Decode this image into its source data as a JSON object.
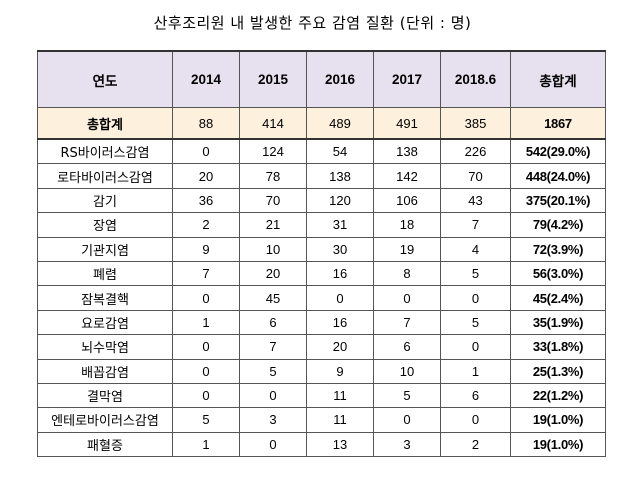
{
  "title": "산후조리원 내 발생한 주요 감염 질환 (단위 : 명)",
  "headers": [
    "연도",
    "2014",
    "2015",
    "2016",
    "2017",
    "2018.6",
    "총합계"
  ],
  "total_row": {
    "label": "총합계",
    "values": [
      "88",
      "414",
      "489",
      "491",
      "385"
    ],
    "sum": "1867"
  },
  "rows": [
    {
      "label": "RS바이러스감염",
      "values": [
        "0",
        "124",
        "54",
        "138",
        "226"
      ],
      "sum": "542(29.0%)"
    },
    {
      "label": "로타바이러스감염",
      "values": [
        "20",
        "78",
        "138",
        "142",
        "70"
      ],
      "sum": "448(24.0%)"
    },
    {
      "label": "감기",
      "values": [
        "36",
        "70",
        "120",
        "106",
        "43"
      ],
      "sum": "375(20.1%)"
    },
    {
      "label": "장염",
      "values": [
        "2",
        "21",
        "31",
        "18",
        "7"
      ],
      "sum": "79(4.2%)"
    },
    {
      "label": "기관지염",
      "values": [
        "9",
        "10",
        "30",
        "19",
        "4"
      ],
      "sum": "72(3.9%)"
    },
    {
      "label": "폐렴",
      "values": [
        "7",
        "20",
        "16",
        "8",
        "5"
      ],
      "sum": "56(3.0%)"
    },
    {
      "label": "잠복결핵",
      "values": [
        "0",
        "45",
        "0",
        "0",
        "0"
      ],
      "sum": "45(2.4%)"
    },
    {
      "label": "요로감염",
      "values": [
        "1",
        "6",
        "16",
        "7",
        "5"
      ],
      "sum": "35(1.9%)"
    },
    {
      "label": "뇌수막염",
      "values": [
        "0",
        "7",
        "20",
        "6",
        "0"
      ],
      "sum": "33(1.8%)"
    },
    {
      "label": "배꼽감염",
      "values": [
        "0",
        "5",
        "9",
        "10",
        "1"
      ],
      "sum": "25(1.3%)"
    },
    {
      "label": "결막염",
      "values": [
        "0",
        "0",
        "11",
        "5",
        "6"
      ],
      "sum": "22(1.2%)"
    },
    {
      "label": "엔테로바이러스감염",
      "values": [
        "5",
        "3",
        "11",
        "0",
        "0"
      ],
      "sum": "19(1.0%)"
    },
    {
      "label": "패혈증",
      "values": [
        "1",
        "0",
        "13",
        "3",
        "2"
      ],
      "sum": "19(1.0%)"
    }
  ]
}
